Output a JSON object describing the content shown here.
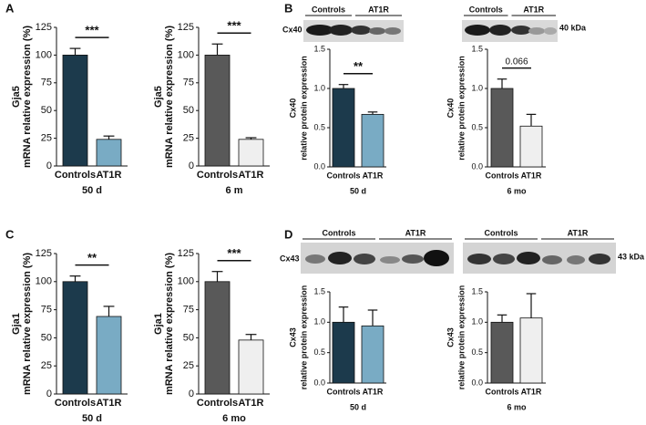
{
  "panel_labels": [
    "A",
    "B",
    "C",
    "D"
  ],
  "blots": [
    {
      "protein": "Cx40",
      "size": "40 kDa",
      "strips": [
        {
          "groups": [
            "Controls",
            "AT1R"
          ]
        },
        {
          "groups": [
            "Controls",
            "AT1R"
          ]
        }
      ]
    },
    {
      "protein": "Cx43",
      "size": "43 kDa",
      "strips": [
        {
          "groups": [
            "Controls",
            "AT1R"
          ]
        },
        {
          "groups": [
            "Controls",
            "AT1R"
          ]
        }
      ]
    }
  ],
  "chart_data": [
    {
      "type": "bar",
      "ylabel": [
        "Gja5",
        "mRNA relative expression (%)"
      ],
      "xlabel": "50 d",
      "categories": [
        "Controls",
        "AT1R"
      ],
      "values": [
        100,
        24
      ],
      "errors": [
        6,
        3
      ],
      "colors": [
        "#1c3a4c",
        "#79abc4"
      ],
      "ylim": [
        0,
        125
      ],
      "yticks": [
        0,
        25,
        50,
        75,
        100,
        125
      ],
      "annotation": "***"
    },
    {
      "type": "bar",
      "ylabel": [
        "Gja5",
        "mRNA relative expression (%)"
      ],
      "xlabel": "6 m",
      "categories": [
        "Controls",
        "AT1R"
      ],
      "values": [
        100,
        24
      ],
      "errors": [
        10,
        1.5
      ],
      "colors": [
        "#595959",
        "#efefef"
      ],
      "ylim": [
        0,
        125
      ],
      "yticks": [
        0,
        25,
        50,
        75,
        100,
        125
      ],
      "annotation": "***"
    },
    {
      "type": "bar",
      "ylabel": [
        "Cx40",
        "relative protein expression"
      ],
      "xlabel": "50 d",
      "categories": [
        "Controls",
        "AT1R"
      ],
      "values": [
        1.0,
        0.67
      ],
      "errors": [
        0.05,
        0.03
      ],
      "colors": [
        "#1c3a4c",
        "#79abc4"
      ],
      "ylim": [
        0,
        1.5
      ],
      "yticks": [
        {
          "value": 0,
          "label": "0.0"
        },
        0.5,
        {
          "value": 1,
          "label": "1.0"
        },
        1.5
      ],
      "annotation": "**"
    },
    {
      "type": "bar",
      "ylabel": [
        "Cx40",
        "relative protein expression"
      ],
      "xlabel": "6 mo",
      "categories": [
        "Controls",
        "AT1R"
      ],
      "values": [
        1.0,
        0.52
      ],
      "errors": [
        0.12,
        0.15
      ],
      "colors": [
        "#595959",
        "#efefef"
      ],
      "ylim": [
        0,
        1.5
      ],
      "yticks": [
        {
          "value": 0,
          "label": "0.0"
        },
        0.5,
        {
          "value": 1,
          "label": "1.0"
        },
        1.5
      ],
      "annotation": "0.066"
    },
    {
      "type": "bar",
      "ylabel": [
        "Gja1",
        "mRNA relative expression (%)"
      ],
      "xlabel": "50 d",
      "categories": [
        "Controls",
        "AT1R"
      ],
      "values": [
        100,
        69
      ],
      "errors": [
        5,
        9
      ],
      "colors": [
        "#1c3a4c",
        "#79abc4"
      ],
      "ylim": [
        0,
        125
      ],
      "yticks": [
        0,
        25,
        50,
        75,
        100,
        125
      ],
      "annotation": "**"
    },
    {
      "type": "bar",
      "ylabel": [
        "Gja1",
        "mRNA relative expression (%)"
      ],
      "xlabel": "6 mo",
      "categories": [
        "Controls",
        "AT1R"
      ],
      "values": [
        100,
        48
      ],
      "errors": [
        9,
        5
      ],
      "colors": [
        "#595959",
        "#efefef"
      ],
      "ylim": [
        0,
        125
      ],
      "yticks": [
        0,
        25,
        50,
        75,
        100,
        125
      ],
      "annotation": "***"
    },
    {
      "type": "bar",
      "ylabel": [
        "Cx43",
        "relative protein expression"
      ],
      "xlabel": "50 d",
      "categories": [
        "Controls",
        "AT1R"
      ],
      "values": [
        1.0,
        0.94
      ],
      "errors": [
        0.25,
        0.26
      ],
      "colors": [
        "#1c3a4c",
        "#79abc4"
      ],
      "ylim": [
        0,
        1.5
      ],
      "yticks": [
        {
          "value": 0,
          "label": "0.0"
        },
        0.5,
        {
          "value": 1,
          "label": "1.0"
        },
        1.5
      ]
    },
    {
      "type": "bar",
      "ylabel": [
        "Cx43",
        "relative protein expression"
      ],
      "xlabel": "6 mo",
      "categories": [
        "Controls",
        "AT1R"
      ],
      "values": [
        1.0,
        1.07
      ],
      "errors": [
        0.12,
        0.4
      ],
      "colors": [
        "#595959",
        "#efefef"
      ],
      "ylim": [
        0,
        1.5
      ],
      "yticks": [
        {
          "value": 0,
          "label": "0.0"
        },
        0.5,
        {
          "value": 1,
          "label": "1.0"
        },
        1.5
      ]
    }
  ]
}
